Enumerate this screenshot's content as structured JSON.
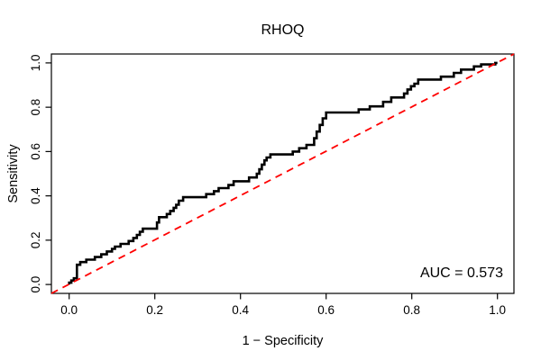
{
  "chart_data": {
    "type": "line",
    "subtype": "roc-step-curve",
    "title": "RHOQ",
    "xlabel": "1 − Specificity",
    "ylabel": "Sensitivity",
    "xlim": [
      0,
      1
    ],
    "ylim": [
      0,
      1
    ],
    "grid": false,
    "legend": "none",
    "annotation": "AUC = 0.573",
    "auc": 0.573,
    "x_tick_values": [
      0,
      0.2,
      0.4,
      0.6,
      0.8,
      1.0
    ],
    "x_tick_labels": [
      "0.0",
      "0.2",
      "0.4",
      "0.6",
      "0.8",
      "1.0"
    ],
    "y_tick_values": [
      0,
      0.2,
      0.4,
      0.6,
      0.8,
      1.0
    ],
    "y_tick_labels": [
      "0.0",
      "0.2",
      "0.4",
      "0.6",
      "0.8",
      "1.0"
    ],
    "series": [
      {
        "name": "roc-curve",
        "color": "#000000",
        "line_style": "solid-step",
        "points": [
          [
            0,
            0
          ],
          [
            0,
            0.008
          ],
          [
            0.005,
            0.018
          ],
          [
            0.011,
            0.028
          ],
          [
            0.018,
            0.089
          ],
          [
            0.026,
            0.101
          ],
          [
            0.04,
            0.112
          ],
          [
            0.06,
            0.124
          ],
          [
            0.075,
            0.136
          ],
          [
            0.088,
            0.149
          ],
          [
            0.1,
            0.161
          ],
          [
            0.107,
            0.171
          ],
          [
            0.12,
            0.183
          ],
          [
            0.139,
            0.196
          ],
          [
            0.15,
            0.21
          ],
          [
            0.158,
            0.224
          ],
          [
            0.165,
            0.238
          ],
          [
            0.172,
            0.252
          ],
          [
            0.205,
            0.28
          ],
          [
            0.21,
            0.304
          ],
          [
            0.228,
            0.318
          ],
          [
            0.236,
            0.332
          ],
          [
            0.244,
            0.346
          ],
          [
            0.25,
            0.36
          ],
          [
            0.256,
            0.378
          ],
          [
            0.266,
            0.394
          ],
          [
            0.32,
            0.408
          ],
          [
            0.338,
            0.421
          ],
          [
            0.349,
            0.435
          ],
          [
            0.372,
            0.449
          ],
          [
            0.384,
            0.466
          ],
          [
            0.42,
            0.483
          ],
          [
            0.438,
            0.5
          ],
          [
            0.444,
            0.52
          ],
          [
            0.45,
            0.541
          ],
          [
            0.456,
            0.56
          ],
          [
            0.461,
            0.573
          ],
          [
            0.47,
            0.587
          ],
          [
            0.522,
            0.6
          ],
          [
            0.537,
            0.615
          ],
          [
            0.554,
            0.63
          ],
          [
            0.572,
            0.66
          ],
          [
            0.578,
            0.69
          ],
          [
            0.585,
            0.72
          ],
          [
            0.592,
            0.75
          ],
          [
            0.6,
            0.776
          ],
          [
            0.676,
            0.79
          ],
          [
            0.702,
            0.804
          ],
          [
            0.733,
            0.824
          ],
          [
            0.752,
            0.844
          ],
          [
            0.782,
            0.862
          ],
          [
            0.79,
            0.88
          ],
          [
            0.798,
            0.895
          ],
          [
            0.806,
            0.906
          ],
          [
            0.815,
            0.925
          ],
          [
            0.868,
            0.938
          ],
          [
            0.898,
            0.955
          ],
          [
            0.915,
            0.97
          ],
          [
            0.945,
            0.984
          ],
          [
            0.962,
            0.993
          ],
          [
            0.995,
            1
          ],
          [
            1,
            1
          ]
        ]
      },
      {
        "name": "chance-diagonal",
        "color": "#FF0000",
        "line_style": "dashed",
        "abline": {
          "intercept": 0,
          "slope": 1
        }
      }
    ]
  },
  "colors": {
    "curve": "#000000",
    "diagonal": "#FF0000",
    "axis": "#000000",
    "background": "#FFFFFF"
  }
}
